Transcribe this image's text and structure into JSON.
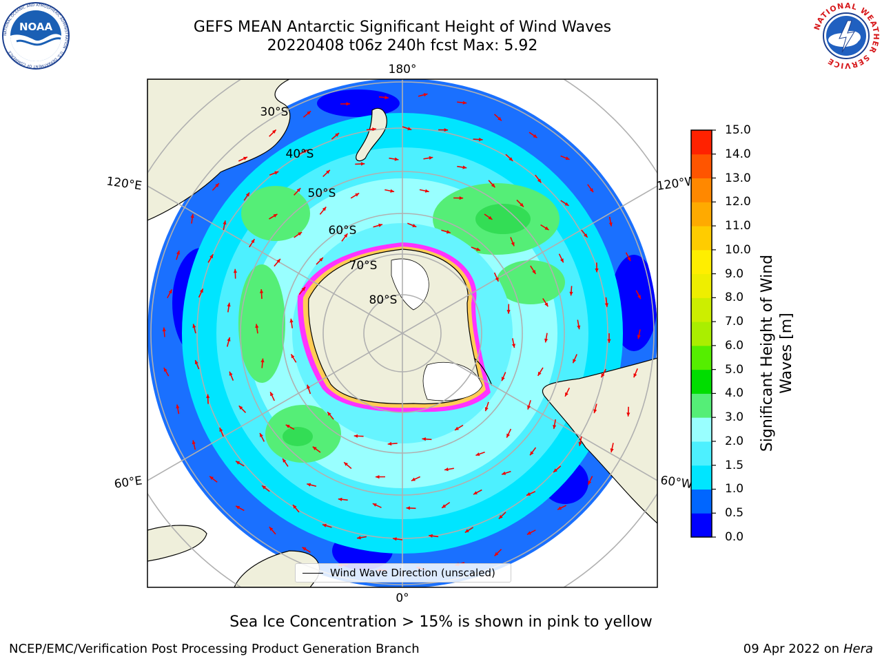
{
  "header": {
    "title_line1": "GEFS MEAN Antarctic Significant Height of Wind Waves",
    "title_line2": "20220408 t06z 240h fcst   Max: 5.92"
  },
  "logos": {
    "left": {
      "name": "noaa-logo",
      "text": "NOAA",
      "ring_text": "NATIONAL OCEANIC AND ATMOSPHERIC ADMINISTRATION · U.S. DEPARTMENT OF COMMERCE"
    },
    "right": {
      "name": "national-weather-service-logo",
      "ring_text": "NATIONAL WEATHER SERVICE"
    }
  },
  "map": {
    "projection": "south-polar-stereographic",
    "longitude_labels": {
      "top": "180°",
      "bottom": "0°",
      "upper_left": "120°E",
      "upper_right": "120°W",
      "lower_left": "60°E",
      "lower_right": "60°W"
    },
    "latitude_labels": [
      "30°S",
      "40°S",
      "50°S",
      "60°S",
      "70°S",
      "80°S"
    ],
    "legend_text": "Wind Wave Direction (unscaled)"
  },
  "colorbar": {
    "label": "Significant Height of Wind Waves [m]",
    "ticks": [
      "0.0",
      "0.5",
      "1.0",
      "1.5",
      "2.0",
      "3.0",
      "4.0",
      "5.0",
      "6.0",
      "7.0",
      "8.0",
      "9.0",
      "10.0",
      "11.0",
      "12.0",
      "13.0",
      "14.0",
      "15.0"
    ],
    "colors": [
      "#0000ff",
      "#0066ff",
      "#00e5ff",
      "#4df0ff",
      "#99ffff",
      "#55ee77",
      "#00dd00",
      "#55ee00",
      "#aaee00",
      "#ccee00",
      "#eeee00",
      "#ffee00",
      "#ffcc00",
      "#ffaa00",
      "#ff8800",
      "#ff5500",
      "#ff2200"
    ]
  },
  "colors": {
    "land": "#efefdb",
    "ice_sheet": "#ffffff",
    "arrow": "#ee0000",
    "sea_ice_edge": "#ff33ff",
    "gridline": "#b0b0b0"
  },
  "footer": {
    "note": "Sea Ice Concentration > 15% is shown in pink to yellow",
    "credit": "NCEP/EMC/Verification Post Processing Product Generation Branch",
    "date_text": "09 Apr 2022 on ",
    "date_host": "Hera"
  }
}
